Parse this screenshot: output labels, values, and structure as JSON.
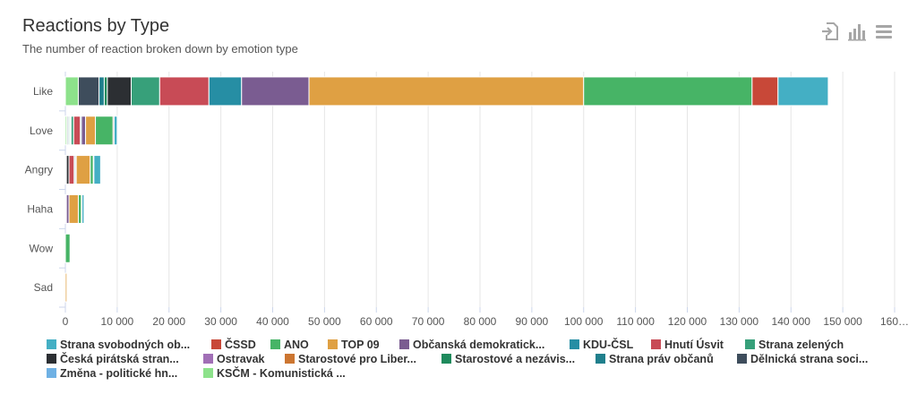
{
  "header": {
    "title": "Reactions by Type",
    "subtitle": "The number of reaction broken down by emotion type"
  },
  "toolbar": {
    "icons": [
      "export-icon",
      "bar-chart-icon",
      "menu-icon"
    ]
  },
  "chart_data": {
    "type": "bar",
    "orientation": "horizontal",
    "stacked": true,
    "title": "Reactions by Type",
    "subtitle": "The number of reaction broken down by emotion type",
    "categories": [
      "Like",
      "Love",
      "Angry",
      "Haha",
      "Wow",
      "Sad"
    ],
    "xlim": [
      0,
      160000
    ],
    "x_ticks": [
      "0",
      "10 000",
      "20 000",
      "30 000",
      "40 000",
      "50 000",
      "60 000",
      "70 000",
      "80 000",
      "90 000",
      "100 000",
      "110 000",
      "120 000",
      "130 000",
      "140 000",
      "150 000",
      "160…"
    ],
    "grid": true,
    "legend": "bottom",
    "series": [
      {
        "name": "Strana svobodných ob...",
        "color": "#44afc4",
        "values": [
          9700,
          600,
          1300,
          400,
          0,
          0
        ]
      },
      {
        "name": "ČSSD",
        "color": "#c84838",
        "values": [
          5000,
          200,
          100,
          100,
          0,
          0
        ]
      },
      {
        "name": "ANO",
        "color": "#47b466",
        "values": [
          32500,
          3400,
          600,
          600,
          900,
          0
        ]
      },
      {
        "name": "TOP 09",
        "color": "#dfa043",
        "values": [
          53000,
          1900,
          2700,
          1800,
          0,
          300
        ]
      },
      {
        "name": "Občanská demokratick...",
        "color": "#7a5c91",
        "values": [
          13000,
          800,
          200,
          500,
          0,
          0
        ]
      },
      {
        "name": "KDU-ČSL",
        "color": "#268ea4",
        "values": [
          6300,
          200,
          200,
          0,
          0,
          0
        ]
      },
      {
        "name": "Hnutí Úsvit",
        "color": "#c84b56",
        "values": [
          9500,
          1300,
          1000,
          0,
          0,
          0
        ]
      },
      {
        "name": "Strana zelených",
        "color": "#37a07a",
        "values": [
          5500,
          500,
          0,
          0,
          0,
          0
        ]
      },
      {
        "name": "Česká pirátská stran...",
        "color": "#2c2f33",
        "values": [
          4600,
          100,
          500,
          0,
          0,
          0
        ]
      },
      {
        "name": "Ostravak",
        "color": "#a16fb6",
        "values": [
          0,
          100,
          0,
          200,
          0,
          0
        ]
      },
      {
        "name": "Starostové pro Liber...",
        "color": "#cc7631",
        "values": [
          0,
          0,
          0,
          0,
          0,
          0
        ]
      },
      {
        "name": "Starostové a nezávis...",
        "color": "#1e8a5c",
        "values": [
          600,
          200,
          0,
          0,
          0,
          0
        ]
      },
      {
        "name": "Strana práv občanů",
        "color": "#1f7f8c",
        "values": [
          1000,
          200,
          0,
          0,
          0,
          0
        ]
      },
      {
        "name": "Dělnická strana soci...",
        "color": "#3e4d5c",
        "values": [
          4000,
          200,
          200,
          0,
          0,
          0
        ]
      },
      {
        "name": "Změna - politické hn...",
        "color": "#6fb1e4",
        "values": [
          0,
          0,
          0,
          0,
          0,
          0
        ]
      },
      {
        "name": "KSČM - Komunistická ...",
        "color": "#8de28b",
        "values": [
          2500,
          300,
          0,
          0,
          0,
          0
        ]
      }
    ]
  }
}
